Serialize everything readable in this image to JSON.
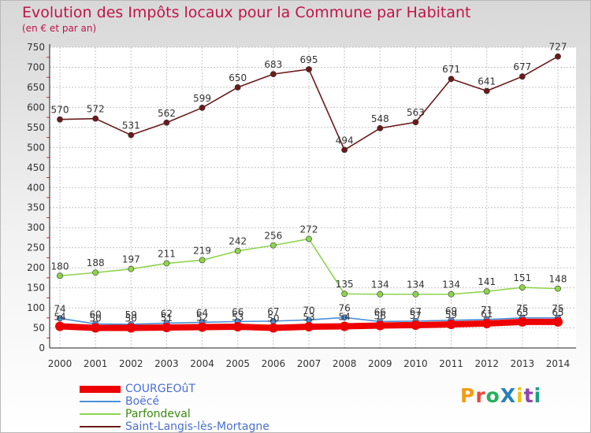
{
  "header": {
    "title": "Evolution des Impôts locaux pour la Commune par Habitant",
    "subtitle": "(en € et par an)"
  },
  "logo": {
    "text": "ProXiti",
    "colors": [
      "#f39c12",
      "#e74c3c",
      "#27ae60",
      "#2980b9",
      "#f1c40f",
      "#8e44ad",
      "#16a085"
    ]
  },
  "chart_data": {
    "type": "line",
    "title": "Evolution des Impôts locaux pour la Commune par Habitant",
    "subtitle": "(en € et par an)",
    "xlabel": "",
    "ylabel": "",
    "x": [
      2000,
      2001,
      2002,
      2003,
      2004,
      2005,
      2006,
      2007,
      2008,
      2009,
      2010,
      2011,
      2012,
      2013,
      2014
    ],
    "ylim": [
      0,
      750
    ],
    "yticks": [
      0,
      50,
      100,
      150,
      200,
      250,
      300,
      350,
      400,
      450,
      500,
      550,
      600,
      650,
      700,
      750
    ],
    "grid": true,
    "legend": "bottom-left",
    "series": [
      {
        "name": "Saint-Langis-lès-Mortagne",
        "color": "#6b1a1a",
        "values": [
          570,
          572,
          531,
          562,
          599,
          650,
          683,
          695,
          494,
          548,
          563,
          671,
          641,
          677,
          727
        ]
      },
      {
        "name": "Parfondeval",
        "color": "#8fd44e",
        "values": [
          180,
          188,
          197,
          211,
          219,
          242,
          256,
          272,
          135,
          134,
          134,
          134,
          141,
          151,
          148
        ]
      },
      {
        "name": "Boëcé",
        "color": "#4a90d9",
        "values": [
          74,
          60,
          59,
          62,
          64,
          66,
          67,
          70,
          76,
          66,
          67,
          69,
          71,
          75,
          75
        ]
      },
      {
        "name": "COURGEOûT",
        "color": "#ee0000",
        "values": [
          54,
          50,
          50,
          51,
          52,
          53,
          50,
          53,
          54,
          56,
          57,
          59,
          61,
          65,
          65
        ]
      }
    ]
  }
}
